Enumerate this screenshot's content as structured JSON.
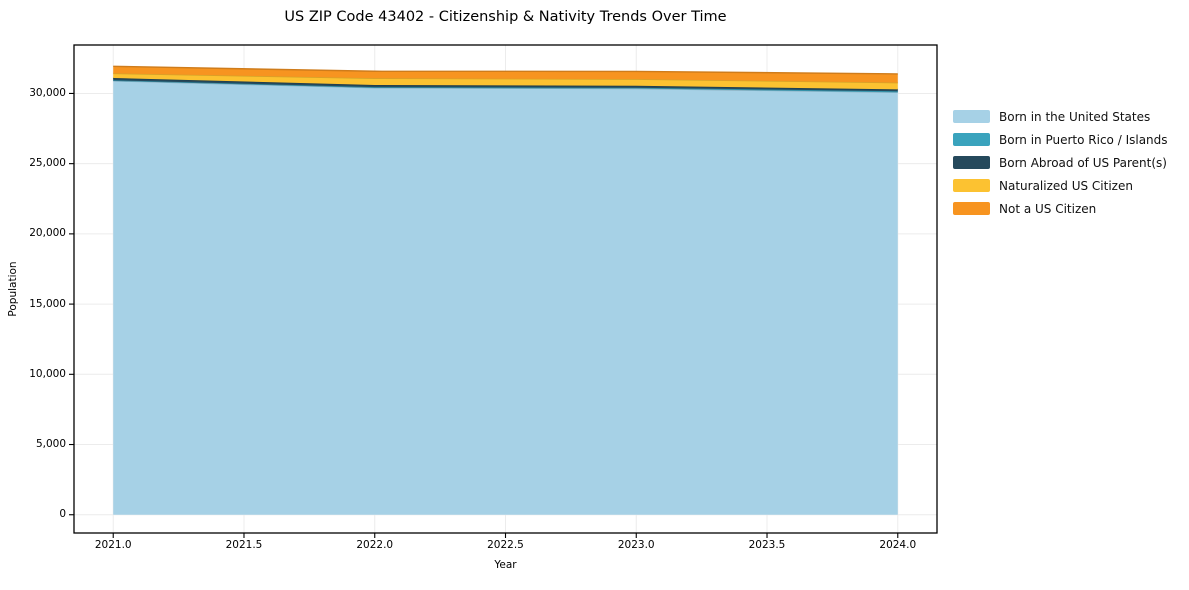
{
  "title": "US ZIP Code 43402 - Citizenship & Nativity Trends Over Time",
  "chart_data": {
    "type": "area",
    "stacked": true,
    "title": "US ZIP Code 43402 - Citizenship & Nativity Trends Over Time",
    "xlabel": "Year",
    "ylabel": "Population",
    "x": [
      2021,
      2022,
      2023,
      2024
    ],
    "series": [
      {
        "name": "Born in the United States",
        "color": "#a6d1e6",
        "values": [
          30900,
          30400,
          30350,
          30080
        ]
      },
      {
        "name": "Born in Puerto Rico / Islands",
        "color": "#3aa3bd",
        "values": [
          40,
          50,
          60,
          80
        ]
      },
      {
        "name": "Born Abroad of US Parent(s)",
        "color": "#25495c",
        "values": [
          160,
          150,
          140,
          130
        ]
      },
      {
        "name": "Naturalized US Citizen",
        "color": "#fcc231",
        "values": [
          330,
          480,
          470,
          480
        ]
      },
      {
        "name": "Not a US Citizen",
        "color": "#f79420",
        "values": [
          500,
          500,
          550,
          620
        ]
      }
    ],
    "xlim": [
      2020.85,
      2024.15
    ],
    "ylim": [
      -1300,
      33450
    ],
    "xticks": {
      "values": [
        2021.0,
        2021.5,
        2022.0,
        2022.5,
        2023.0,
        2023.5,
        2024.0
      ],
      "labels": [
        "2021.0",
        "2021.5",
        "2022.0",
        "2022.5",
        "2023.0",
        "2023.5",
        "2024.0"
      ]
    },
    "yticks": {
      "values": [
        0,
        5000,
        10000,
        15000,
        20000,
        25000,
        30000
      ],
      "labels": [
        "0",
        "5,000",
        "10,000",
        "15,000",
        "20,000",
        "25,000",
        "30,000"
      ]
    },
    "grid": true,
    "legend_position": "right-outside",
    "frame_color": "#000000",
    "grid_color": "#ececec"
  }
}
